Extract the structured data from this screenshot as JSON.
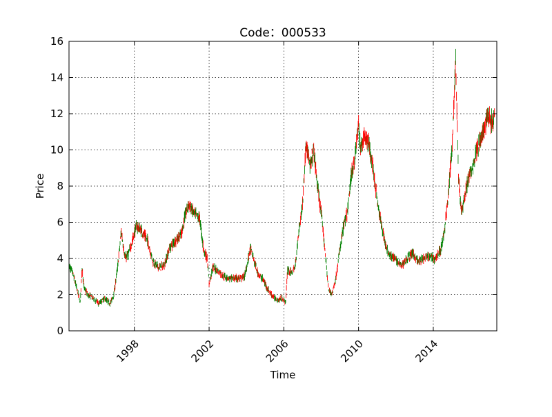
{
  "chart_data": {
    "type": "line",
    "title": "Code：000533",
    "xlabel": "Time",
    "ylabel": "Price",
    "xlim": [
      1994.5,
      2017.4
    ],
    "ylim": [
      0,
      16
    ],
    "x_ticks": [
      1998,
      2002,
      2006,
      2010,
      2014
    ],
    "x_tick_labels": [
      "1998",
      "2002",
      "2006",
      "2010",
      "2014"
    ],
    "y_ticks": [
      0,
      2,
      4,
      6,
      8,
      10,
      12,
      14,
      16
    ],
    "y_tick_labels": [
      "0",
      "2",
      "4",
      "6",
      "8",
      "10",
      "12",
      "14",
      "16"
    ],
    "grid": true,
    "colors": {
      "up": "#ff0000",
      "down": "#008000"
    },
    "series": [
      {
        "values_note": "",
        "x": [
          1994.5,
          1994.7,
          1994.9,
          1995.1,
          1995.2,
          1995.3,
          1995.5,
          1995.8,
          1996.1,
          1996.4,
          1996.7,
          1996.9,
          1997.1,
          1997.3,
          1997.5,
          1997.7,
          1997.9,
          1998.1,
          1998.4,
          1998.7,
          1999.0,
          1999.3,
          1999.6,
          1999.9,
          2000.2,
          2000.5,
          2000.7,
          2000.9,
          2001.2,
          2001.5,
          2001.7,
          2001.9,
          2002.0,
          2002.2,
          2002.5,
          2002.8,
          2003.1,
          2003.4,
          2003.7,
          2003.9,
          2004.1,
          2004.2,
          2004.4,
          2004.6,
          2004.9,
          2005.2,
          2005.5,
          2005.7,
          2005.9,
          2006.1,
          2006.2,
          2006.4,
          2006.6,
          2006.8,
          2007.0,
          2007.2,
          2007.4,
          2007.6,
          2007.8,
          2008.0,
          2008.2,
          2008.4,
          2008.6,
          2008.8,
          2009.0,
          2009.2,
          2009.4,
          2009.6,
          2009.8,
          2010.0,
          2010.1,
          2010.3,
          2010.5,
          2010.7,
          2010.9,
          2011.1,
          2011.3,
          2011.5,
          2011.7,
          2011.9,
          2012.1,
          2012.3,
          2012.6,
          2012.9,
          2013.2,
          2013.5,
          2013.8,
          2014.1,
          2014.4,
          2014.6,
          2014.8,
          2015.0,
          2015.2,
          2015.35,
          2015.5,
          2015.7,
          2015.9,
          2016.1,
          2016.3,
          2016.5,
          2016.7,
          2016.9,
          2017.1,
          2017.3
        ],
        "values": [
          3.6,
          3.2,
          2.4,
          1.6,
          3.5,
          2.4,
          2.0,
          1.8,
          1.5,
          1.8,
          1.5,
          2.0,
          3.5,
          5.5,
          4.0,
          4.3,
          5.0,
          5.8,
          5.5,
          5.0,
          3.8,
          3.5,
          3.6,
          4.6,
          5.0,
          5.3,
          6.3,
          7.0,
          6.5,
          6.2,
          4.5,
          4.0,
          2.6,
          3.5,
          3.3,
          3.0,
          2.9,
          2.9,
          2.9,
          3.0,
          4.0,
          4.6,
          3.9,
          3.2,
          2.8,
          2.2,
          1.8,
          1.7,
          1.8,
          1.6,
          3.4,
          3.2,
          3.5,
          5.5,
          7.0,
          10.5,
          9.0,
          10.0,
          8.0,
          6.5,
          4.5,
          2.2,
          2.1,
          3.0,
          4.5,
          5.8,
          6.5,
          8.5,
          9.5,
          11.5,
          10.0,
          10.8,
          10.5,
          9.5,
          8.0,
          6.5,
          5.5,
          4.5,
          4.2,
          4.0,
          3.8,
          3.6,
          4.0,
          4.3,
          3.8,
          4.0,
          4.1,
          4.0,
          4.5,
          5.5,
          7.5,
          10.0,
          15.0,
          8.5,
          6.5,
          7.5,
          8.5,
          9.0,
          10.0,
          10.5,
          11.0,
          12.0,
          11.5,
          12.0
        ]
      }
    ]
  }
}
